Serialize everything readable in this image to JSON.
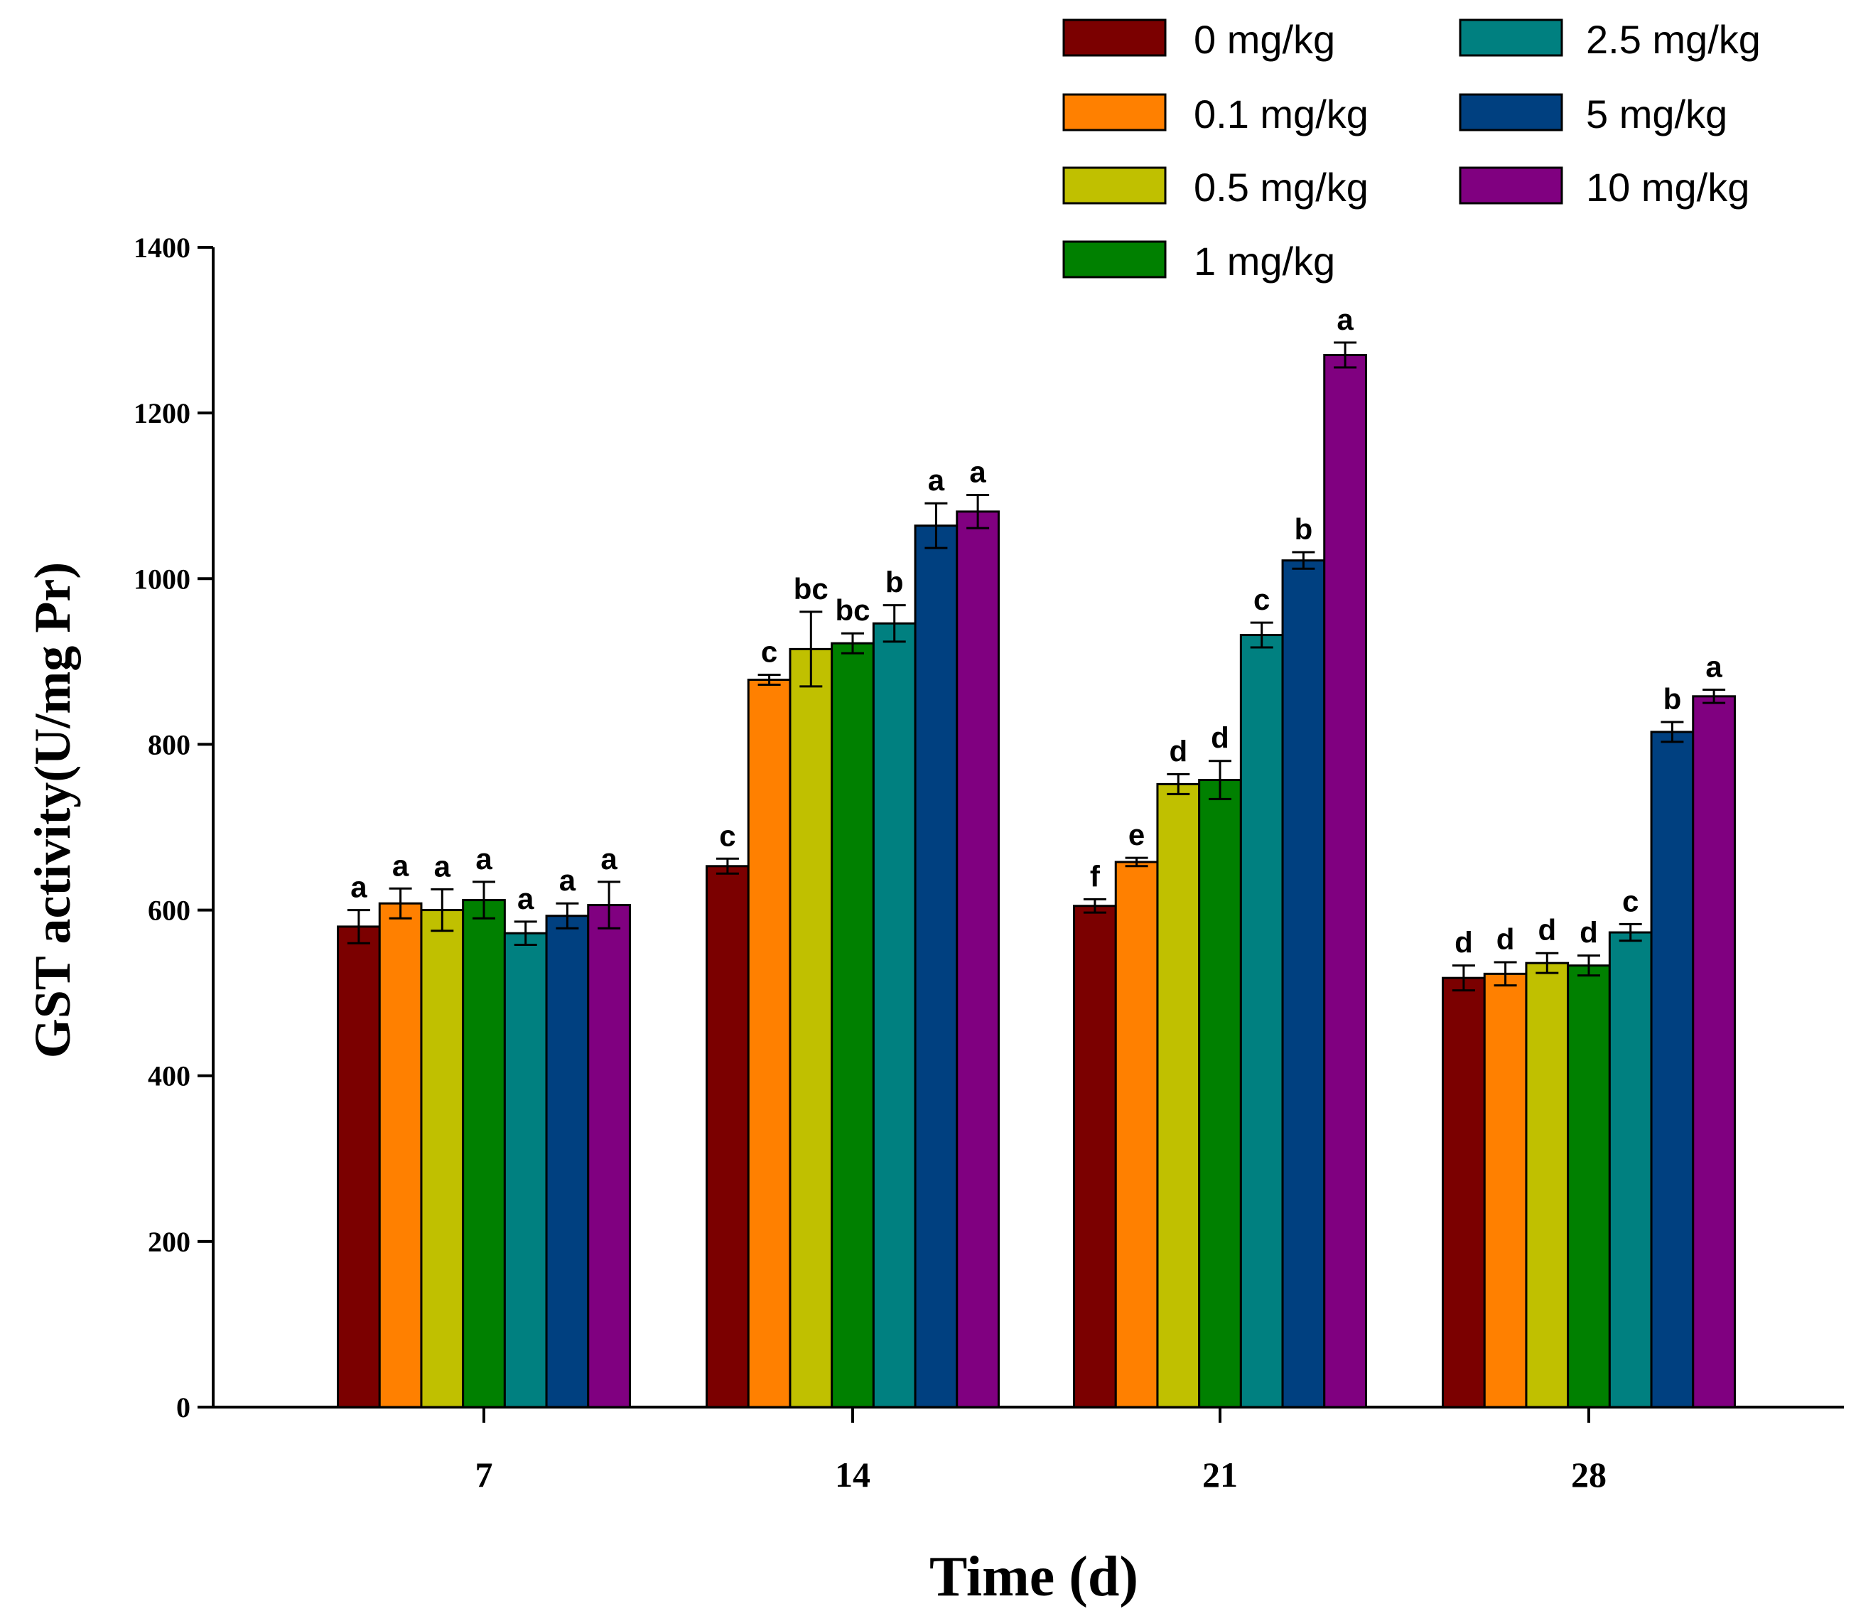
{
  "chart_data": {
    "type": "bar",
    "title": "",
    "xlabel": "Time (d)",
    "ylabel": "GST activity(U/mg Pr)",
    "ylim": [
      0,
      1400
    ],
    "yticks": [
      "0",
      "200",
      "400",
      "600",
      "800",
      "1000",
      "1200",
      "1400"
    ],
    "categories": [
      "7",
      "14",
      "21",
      "28"
    ],
    "legend_position": "top-right",
    "series": [
      {
        "name": "0 mg/kg",
        "color": "#7b0000",
        "values": [
          580,
          653,
          605,
          518
        ],
        "errors": [
          20,
          9,
          8,
          15
        ],
        "labels": [
          "a",
          "c",
          "f",
          "d"
        ]
      },
      {
        "name": "0.1 mg/kg",
        "color": "#ff8000",
        "values": [
          608,
          878,
          658,
          523
        ],
        "errors": [
          18,
          6,
          5,
          14
        ],
        "labels": [
          "a",
          "c",
          "e",
          "d"
        ]
      },
      {
        "name": "0.5 mg/kg",
        "color": "#c0c000",
        "values": [
          600,
          915,
          752,
          536
        ],
        "errors": [
          25,
          45,
          12,
          12
        ],
        "labels": [
          "a",
          "bc",
          "d",
          "d"
        ]
      },
      {
        "name": "1 mg/kg",
        "color": "#008000",
        "values": [
          612,
          922,
          757,
          533
        ],
        "errors": [
          22,
          12,
          23,
          12
        ],
        "labels": [
          "a",
          "bc",
          "d",
          "d"
        ]
      },
      {
        "name": "2.5 mg/kg",
        "color": "#008080",
        "values": [
          572,
          946,
          932,
          573
        ],
        "errors": [
          14,
          22,
          15,
          10
        ],
        "labels": [
          "a",
          "b",
          "c",
          "c"
        ]
      },
      {
        "name": "5 mg/kg",
        "color": "#004080",
        "values": [
          593,
          1064,
          1022,
          815
        ],
        "errors": [
          15,
          27,
          10,
          12
        ],
        "labels": [
          "a",
          "a",
          "b",
          "b"
        ]
      },
      {
        "name": "10 mg/kg",
        "color": "#800080",
        "values": [
          606,
          1081,
          1270,
          858
        ],
        "errors": [
          28,
          20,
          15,
          8
        ],
        "labels": [
          "a",
          "a",
          "a",
          "a"
        ]
      }
    ]
  }
}
